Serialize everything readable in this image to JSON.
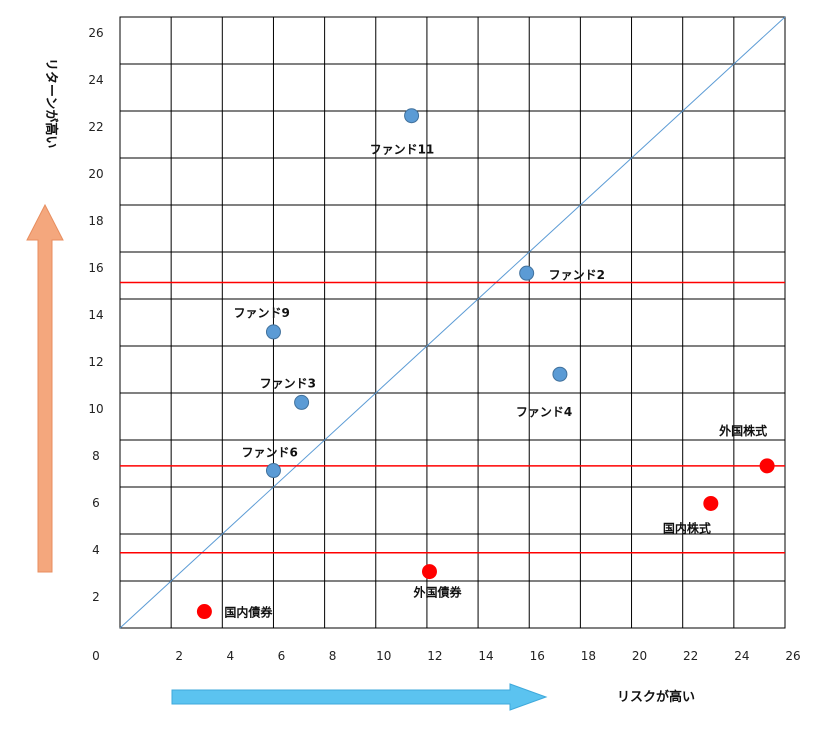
{
  "chart_data": {
    "type": "scatter",
    "xlabel": "リスクが高い",
    "ylabel": "リターンが高い",
    "xlim": [
      0,
      26
    ],
    "ylim": [
      0,
      26
    ],
    "x_ticks": [
      0,
      2,
      4,
      6,
      8,
      10,
      12,
      14,
      16,
      18,
      20,
      22,
      24,
      26
    ],
    "y_ticks": [
      2,
      4,
      6,
      8,
      10,
      12,
      14,
      16,
      18,
      20,
      22,
      24,
      26
    ],
    "grid": true,
    "reference_line": {
      "from": [
        0,
        0
      ],
      "to": [
        26,
        26
      ],
      "color": "#5B9BD5"
    },
    "horizontal_lines": [
      {
        "y": 14.7,
        "color": "#FF0000"
      },
      {
        "y": 6.9,
        "color": "#FF0000"
      },
      {
        "y": 3.2,
        "color": "#FF0000"
      }
    ],
    "series": [
      {
        "color": "#5B9BD5",
        "points": [
          {
            "label": "ファンド11",
            "x": 11.4,
            "y": 21.8
          },
          {
            "label": "ファンド2",
            "x": 15.9,
            "y": 15.1
          },
          {
            "label": "ファンド9",
            "x": 6.0,
            "y": 12.6
          },
          {
            "label": "ファンド3",
            "x": 7.1,
            "y": 9.6
          },
          {
            "label": "ファンド4",
            "x": 17.2,
            "y": 10.8
          },
          {
            "label": "ファンド6",
            "x": 6.0,
            "y": 6.7
          }
        ]
      },
      {
        "color": "#FF0000",
        "points": [
          {
            "label": "外国株式",
            "x": 25.3,
            "y": 6.9
          },
          {
            "label": "国内株式",
            "x": 23.1,
            "y": 5.3
          },
          {
            "label": "外国債券",
            "x": 12.1,
            "y": 2.4
          },
          {
            "label": "国内債券",
            "x": 3.3,
            "y": 0.7
          }
        ]
      }
    ]
  },
  "colors": {
    "grid": "#000000",
    "risk_arrow": "#5BC3F0",
    "return_arrow": "#F4A77D"
  }
}
